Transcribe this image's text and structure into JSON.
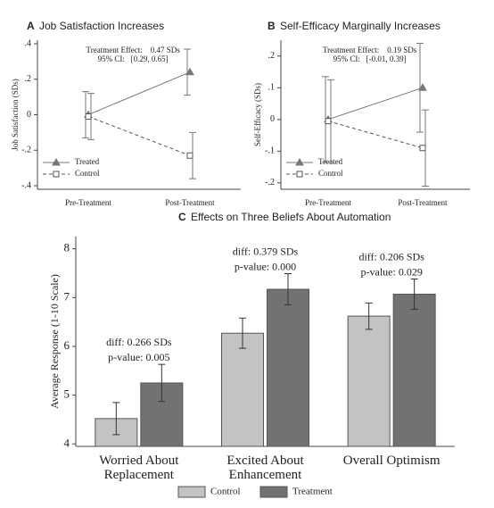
{
  "chart_data": [
    {
      "type": "line",
      "panel": "A",
      "title": "Job Satisfaction Increases",
      "ylabel": "Job Satisfaction (SDs)",
      "categories": [
        "Pre-Treatment",
        "Post-Treatment"
      ],
      "series": [
        {
          "name": "Treated",
          "color": "#777777",
          "marker": "triangle",
          "linestyle": "solid",
          "values": [
            0.0,
            0.24
          ],
          "errors": [
            0.13,
            0.13
          ]
        },
        {
          "name": "Control",
          "color": "#555555",
          "marker": "square",
          "linestyle": "dashed",
          "values": [
            -0.01,
            -0.23
          ],
          "errors": [
            0.13,
            0.13
          ]
        }
      ],
      "annotations": [
        "Treatment Effect:    0.47 SDs",
        "95% CI:   [0.29, 0.65]"
      ],
      "ylim": [
        -0.42,
        0.42
      ],
      "yticks": [
        {
          "value": -0.4,
          "label": "-.4"
        },
        {
          "value": -0.2,
          "label": "-.2"
        },
        0,
        {
          "value": 0.2,
          "label": ".2"
        },
        {
          "value": 0.4,
          "label": ".4"
        }
      ],
      "legend": "lower left"
    },
    {
      "type": "line",
      "panel": "B",
      "title": "Self-Efficacy Marginally Increases",
      "ylabel": "Self-Efficacy (SDs)",
      "categories": [
        "Pre-Treatment",
        "Post-Treatment"
      ],
      "series": [
        {
          "name": "Treated",
          "color": "#777777",
          "marker": "triangle",
          "linestyle": "solid",
          "values": [
            0.0,
            0.1
          ],
          "errors": [
            0.135,
            0.14
          ]
        },
        {
          "name": "Control",
          "color": "#555555",
          "marker": "square",
          "linestyle": "dashed",
          "values": [
            -0.005,
            -0.09
          ],
          "errors": [
            0.13,
            0.12
          ]
        }
      ],
      "annotations": [
        "Treatment Effect:    0.19 SDs",
        "95% CI:   [-0.01, 0.39]"
      ],
      "ylim": [
        -0.22,
        0.25
      ],
      "yticks": [
        {
          "value": -0.2,
          "label": "-.2"
        },
        {
          "value": -0.1,
          "label": "-.1"
        },
        0,
        {
          "value": 0.1,
          "label": ".1"
        },
        {
          "value": 0.2,
          "label": ".2"
        }
      ],
      "legend": "lower left"
    },
    {
      "type": "bar",
      "panel": "C",
      "title": "Effects on Three Beliefs About Automation",
      "ylabel": "Average Response (1-10 Scale)",
      "categories": [
        "Worried About Replacement",
        "Excited About Enhancement",
        "Overall Optimism"
      ],
      "series": [
        {
          "name": "Control",
          "color": "#c3c3c3",
          "values": [
            4.52,
            6.27,
            6.62
          ],
          "errors": [
            0.33,
            0.31,
            0.27
          ]
        },
        {
          "name": "Treatment",
          "color": "#727272",
          "values": [
            5.25,
            7.17,
            7.07
          ],
          "errors": [
            0.38,
            0.32,
            0.31
          ]
        }
      ],
      "annotations": [
        [
          "diff: 0.266 SDs",
          "p-value: 0.005"
        ],
        [
          "diff: 0.379 SDs",
          "p-value: 0.000"
        ],
        [
          "diff: 0.206 SDs",
          "p-value: 0.029"
        ]
      ],
      "ylim": [
        3.95,
        8.25
      ],
      "yticks": [
        4,
        5,
        6,
        7,
        8
      ],
      "legend": "bottom"
    }
  ]
}
